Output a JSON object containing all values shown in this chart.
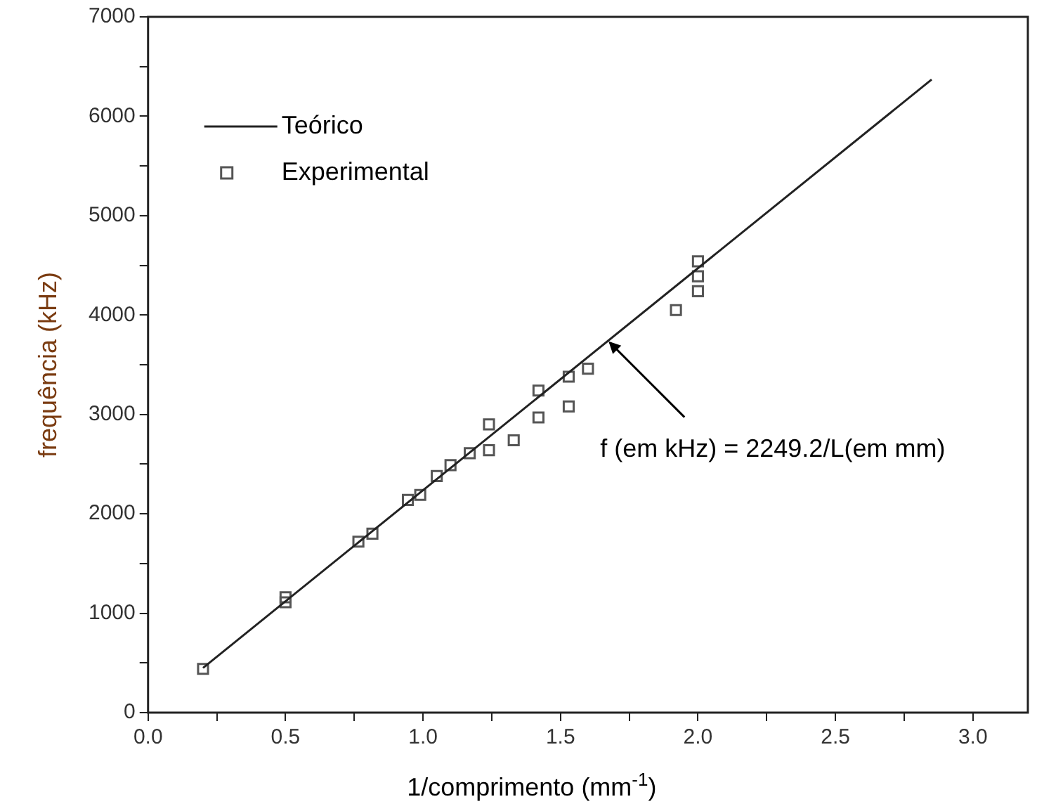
{
  "chart_data": {
    "type": "scatter",
    "xlabel": "1/comprimento (mm$^{-1}$)",
    "ylabel": "frequência (kHz)",
    "xlim": [
      0,
      3.2
    ],
    "ylim": [
      0,
      7000
    ],
    "xticks": [
      {
        "value": 0,
        "label": "0.0"
      },
      {
        "value": 0.25,
        "label": null
      },
      {
        "value": 0.5,
        "label": "0.5"
      },
      {
        "value": 0.75,
        "label": null
      },
      {
        "value": 1,
        "label": "1.0"
      },
      {
        "value": 1.25,
        "label": null
      },
      {
        "value": 1.5,
        "label": "1.5"
      },
      {
        "value": 1.75,
        "label": null
      },
      {
        "value": 2,
        "label": "2.0"
      },
      {
        "value": 2.25,
        "label": null
      },
      {
        "value": 2.5,
        "label": "2.5"
      },
      {
        "value": 2.75,
        "label": null
      },
      {
        "value": 3,
        "label": "3.0"
      }
    ],
    "yticks": [
      0,
      {
        "value": 500,
        "label": null
      },
      1000,
      {
        "value": 1500,
        "label": null
      },
      2000,
      {
        "value": 2500,
        "label": null
      },
      3000,
      {
        "value": 3500,
        "label": null
      },
      4000,
      {
        "value": 4500,
        "label": null
      },
      5000,
      {
        "value": 5500,
        "label": null
      },
      6000,
      {
        "value": 6500,
        "label": null
      },
      7000
    ],
    "series": [
      {
        "name": "Teórico",
        "type": "line",
        "color": "#222222",
        "x": [
          0.2,
          2.85
        ],
        "values": [
          450,
          6370
        ],
        "marker": "none",
        "line_style": "solid"
      },
      {
        "name": "Experimental",
        "type": "scatter",
        "color": "#555555",
        "marker": "square",
        "x": [
          0.2,
          0.5,
          0.5,
          0.765,
          0.816,
          0.945,
          0.99,
          1.05,
          1.1,
          1.17,
          1.24,
          1.24,
          1.33,
          1.42,
          1.42,
          1.53,
          1.53,
          1.6,
          1.92,
          2.0,
          2.0,
          2.0
        ],
        "values": [
          440,
          1160,
          1110,
          1720,
          1800,
          2140,
          2190,
          2380,
          2490,
          2610,
          2900,
          2640,
          2740,
          3240,
          2970,
          3380,
          3080,
          3460,
          4050,
          4540,
          4390,
          4240
        ]
      }
    ],
    "annotations": [
      {
        "text": "f (em kHz) = 2249.2/L(em mm)",
        "x": 1.67,
        "y": 3750
      }
    ],
    "legend": "top left",
    "grid": false
  }
}
